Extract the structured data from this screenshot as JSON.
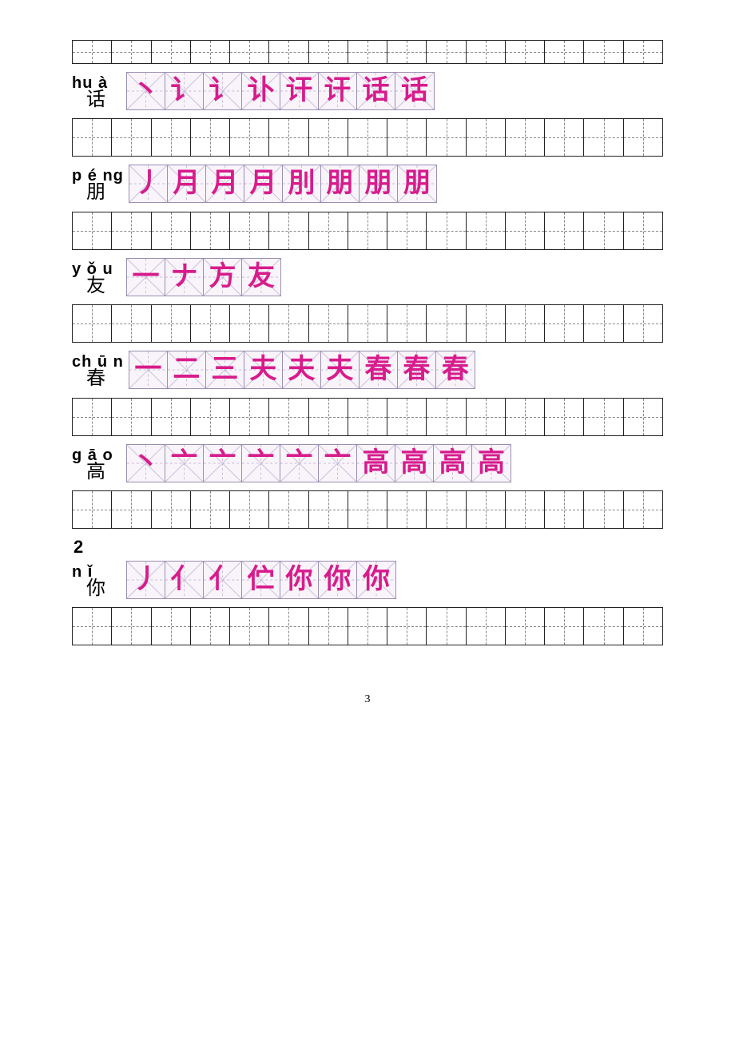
{
  "page_number": "3",
  "section_marker": "2",
  "practice_cells_per_row": 15,
  "colors": {
    "stroke_glyph": "#d81b8c",
    "stroke_grid_border": "#9a8fb0",
    "stroke_grid_bg": "#f8f4fa",
    "practice_border": "#222222",
    "practice_dash": "#888888"
  },
  "characters": [
    {
      "pinyin": "hu à",
      "hanzi": "话",
      "strokes": [
        "丶",
        "讠",
        "讠",
        "讣",
        "讦",
        "讦",
        "话",
        "话"
      ]
    },
    {
      "pinyin": "p é ng",
      "hanzi": "朋",
      "strokes": [
        "丿",
        "月",
        "月",
        "月",
        "刖",
        "朋",
        "朋",
        "朋"
      ]
    },
    {
      "pinyin": "y ǒ u",
      "hanzi": "友",
      "strokes": [
        "一",
        "ナ",
        "方",
        "友"
      ]
    },
    {
      "pinyin": "ch ū n",
      "hanzi": "春",
      "strokes": [
        "一",
        "二",
        "三",
        "夫",
        "夫",
        "夫",
        "春",
        "春",
        "春"
      ]
    },
    {
      "pinyin": "g ā o",
      "hanzi": "高",
      "strokes": [
        "丶",
        "亠",
        "亠",
        "亠",
        "亠",
        "亠",
        "高",
        "高",
        "高",
        "高"
      ]
    },
    {
      "pinyin": "n ǐ",
      "hanzi": "你",
      "strokes": [
        "丿",
        "亻",
        "亻",
        "伫",
        "你",
        "你",
        "你"
      ]
    }
  ]
}
